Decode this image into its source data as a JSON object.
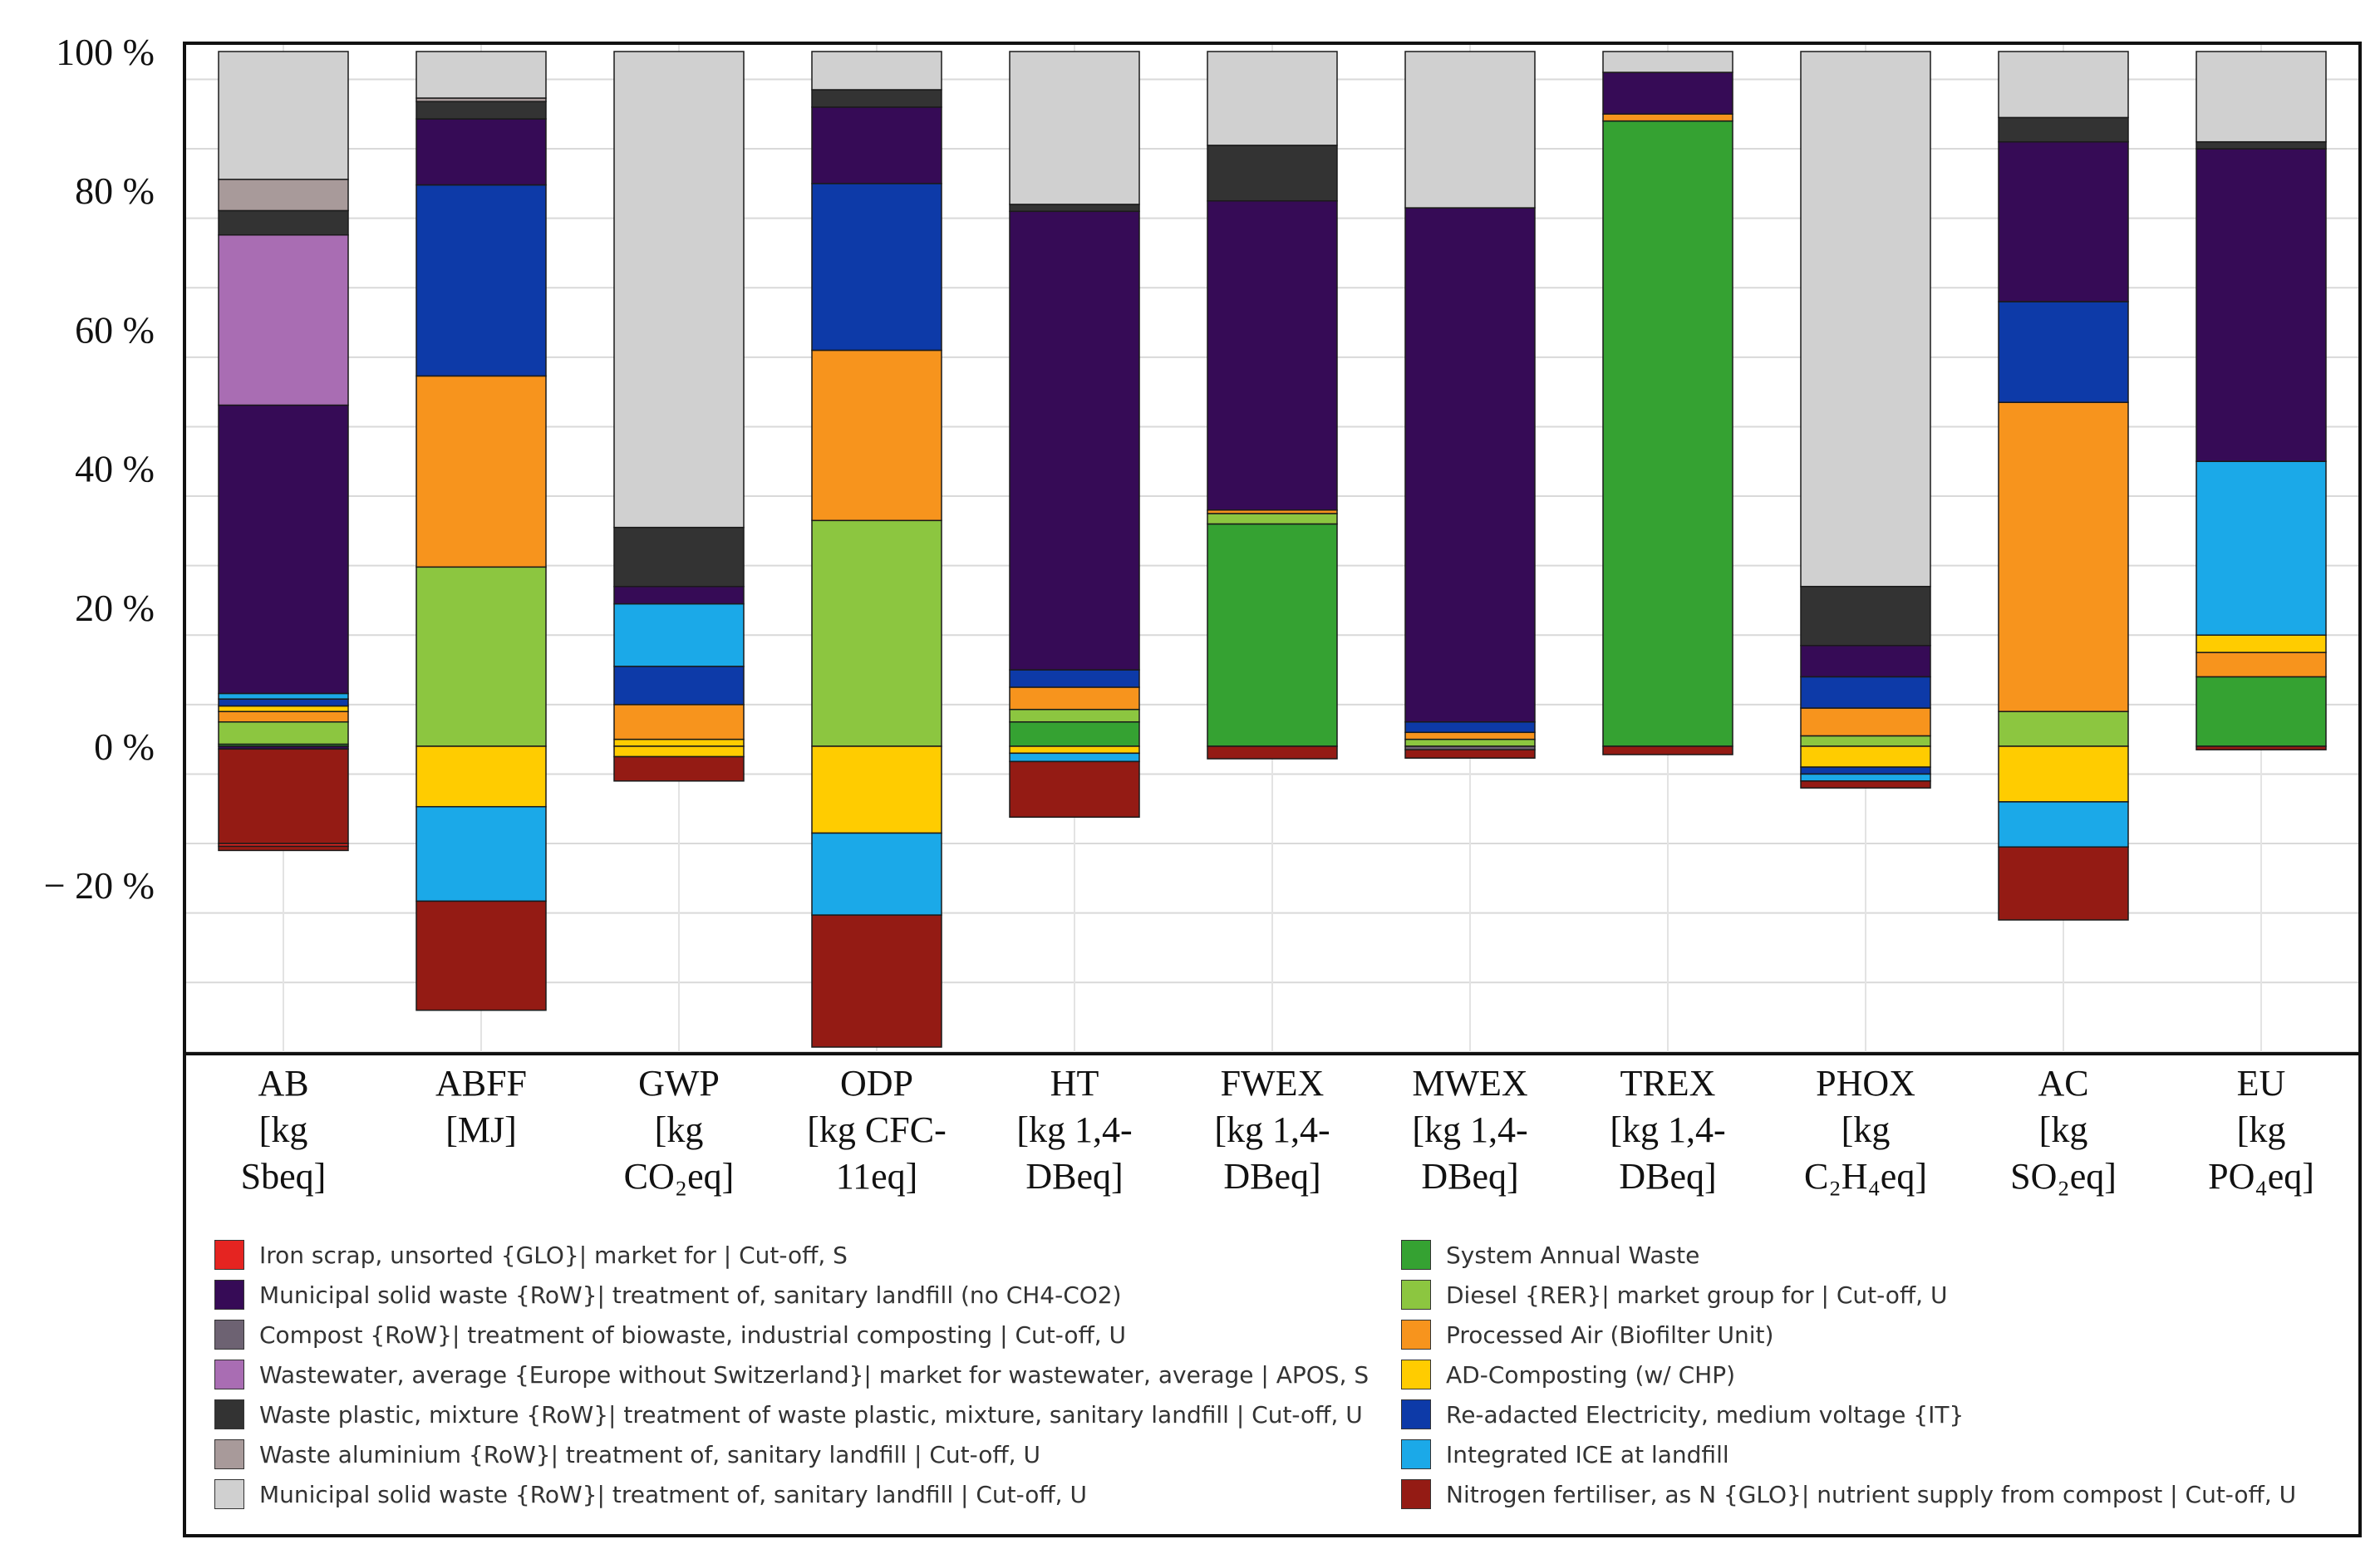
{
  "chart_data": {
    "type": "bar",
    "stacked": true,
    "y_tick_labels": [
      "100 %",
      "80 %",
      "60 %",
      "40 %",
      "20 %",
      "0 %",
      "− 20 %"
    ],
    "ylim": [
      -44,
      100
    ],
    "categories": [
      {
        "lines": [
          "AB",
          "[kg",
          "Sbeq]"
        ]
      },
      {
        "lines": [
          "ABFF",
          "[MJ]"
        ]
      },
      {
        "lines": [
          "GWP",
          "[kg",
          "CO₂eq]"
        ]
      },
      {
        "lines": [
          "ODP",
          "[kg CFC-",
          "11eq]"
        ]
      },
      {
        "lines": [
          "HT",
          "[kg 1,4-",
          "DBeq]"
        ]
      },
      {
        "lines": [
          "FWEX",
          "[kg 1,4-",
          "DBeq]"
        ]
      },
      {
        "lines": [
          "MWEX",
          "[kg 1,4-",
          "DBeq]"
        ]
      },
      {
        "lines": [
          "TREX",
          "[kg 1,4-",
          "DBeq]"
        ]
      },
      {
        "lines": [
          "PHOX",
          "[kg",
          "C₂H₄eq]"
        ]
      },
      {
        "lines": [
          "AC",
          "[kg",
          "SO₂eq]"
        ]
      },
      {
        "lines": [
          "EU",
          "[kg",
          "PO₄eq]"
        ]
      }
    ],
    "legend": [
      {
        "key": "iron",
        "label": "Iron scrap, unsorted {GLO}| market for | Cut-off, S",
        "color": "#e52421"
      },
      {
        "key": "msw_noch4",
        "label": "Municipal solid waste {RoW}| treatment of, sanitary landfill (no CH4-CO2)",
        "color": "#360b56"
      },
      {
        "key": "compost",
        "label": "Compost {RoW}| treatment of biowaste, industrial composting | Cut-off, U",
        "color": "#6d6272"
      },
      {
        "key": "wastewater",
        "label": "Wastewater, average {Europe without Switzerland}| market for wastewater, average | APOS, S",
        "color": "#a96db3"
      },
      {
        "key": "plastic",
        "label": "Waste plastic, mixture {RoW}| treatment of waste plastic, mixture, sanitary landfill | Cut-off, U",
        "color": "#333333"
      },
      {
        "key": "aluminium",
        "label": "Waste aluminium {RoW}| treatment of, sanitary landfill | Cut-off, U",
        "color": "#a89a9a"
      },
      {
        "key": "msw",
        "label": "Municipal solid waste {RoW}| treatment of, sanitary landfill | Cut-off, U",
        "color": "#d0d0d0"
      },
      {
        "key": "system",
        "label": "System Annual Waste",
        "color": "#35a232"
      },
      {
        "key": "diesel",
        "label": "Diesel {RER}| market group for | Cut-off, U",
        "color": "#8cc640"
      },
      {
        "key": "air",
        "label": "Processed Air (Biofilter Unit)",
        "color": "#f7941d"
      },
      {
        "key": "adcomp",
        "label": "AD-Composting (w/ CHP)",
        "color": "#ffcc00"
      },
      {
        "key": "elec",
        "label": "Re-adacted Electricity, medium voltage {IT}",
        "color": "#0d3aa8"
      },
      {
        "key": "ice",
        "label": "Integrated ICE at landfill",
        "color": "#1ba9e8"
      },
      {
        "key": "nfert",
        "label": "Nitrogen fertiliser, as N {GLO}| nutrient supply from compost | Cut-off, U",
        "color": "#941b14"
      }
    ],
    "series": [
      {
        "category": "AB",
        "positive": [
          [
            "system",
            0.3
          ],
          [
            "diesel",
            3.2
          ],
          [
            "air",
            1.5
          ],
          [
            "adcomp",
            0.8
          ],
          [
            "elec",
            1
          ],
          [
            "ice",
            0.8
          ],
          [
            "msw_noch4",
            41.5
          ],
          [
            "wastewater",
            24.5
          ],
          [
            "plastic",
            3.5
          ],
          [
            "aluminium",
            4.5
          ],
          [
            "msw",
            18.4
          ]
        ],
        "negative": [
          [
            "msw_noch4",
            0.4
          ],
          [
            "nfert",
            13.6
          ],
          [
            "iron",
            0.4
          ],
          [
            "nfert",
            0.6
          ]
        ]
      },
      {
        "category": "ABFF",
        "positive": [
          [
            "diesel",
            25.8
          ],
          [
            "air",
            27.5
          ],
          [
            "elec",
            27.5
          ],
          [
            "msw_noch4",
            9.5
          ],
          [
            "plastic",
            2.5
          ],
          [
            "aluminium",
            0.5
          ],
          [
            "msw",
            6.7
          ]
        ],
        "negative": [
          [
            "adcomp",
            8.7
          ],
          [
            "ice",
            13.6
          ],
          [
            "nfert",
            15.7
          ]
        ]
      },
      {
        "category": "GWP",
        "positive": [
          [
            "adcomp",
            1
          ],
          [
            "air",
            5
          ],
          [
            "elec",
            5.5
          ],
          [
            "ice",
            9
          ],
          [
            "msw_noch4",
            2.5
          ],
          [
            "plastic",
            8.5
          ],
          [
            "msw",
            68.5
          ]
        ],
        "negative": [
          [
            "adcomp",
            1.5
          ],
          [
            "nfert",
            3.5
          ]
        ]
      },
      {
        "category": "ODP",
        "positive": [
          [
            "diesel",
            32.5
          ],
          [
            "air",
            24.5
          ],
          [
            "elec",
            24
          ],
          [
            "msw_noch4",
            11
          ],
          [
            "plastic",
            2.5
          ],
          [
            "msw",
            5.5
          ]
        ],
        "negative": [
          [
            "adcomp",
            12.5
          ],
          [
            "ice",
            11.8
          ],
          [
            "nfert",
            19
          ]
        ]
      },
      {
        "category": "HT",
        "positive": [
          [
            "system",
            3.5
          ],
          [
            "diesel",
            1.8
          ],
          [
            "air",
            3.2
          ],
          [
            "elec",
            2.5
          ],
          [
            "msw_noch4",
            66
          ],
          [
            "plastic",
            1
          ],
          [
            "msw",
            22
          ]
        ],
        "negative": [
          [
            "adcomp",
            1
          ],
          [
            "ice",
            1.2
          ],
          [
            "nfert",
            8
          ]
        ]
      },
      {
        "category": "FWEX",
        "positive": [
          [
            "system",
            32
          ],
          [
            "diesel",
            1.5
          ],
          [
            "air",
            0.5
          ],
          [
            "msw_noch4",
            44.5
          ],
          [
            "plastic",
            8
          ],
          [
            "msw",
            13.5
          ]
        ],
        "negative": [
          [
            "nfert",
            1.8
          ]
        ]
      },
      {
        "category": "MWEX",
        "positive": [
          [
            "diesel",
            1
          ],
          [
            "air",
            1
          ],
          [
            "elec",
            1.5
          ],
          [
            "msw_noch4",
            74
          ],
          [
            "msw",
            22.5
          ]
        ],
        "negative": [
          [
            "compost",
            0.5
          ],
          [
            "nfert",
            1.2
          ]
        ]
      },
      {
        "category": "TREX",
        "positive": [
          [
            "system",
            90
          ],
          [
            "air",
            1
          ],
          [
            "msw_noch4",
            6
          ],
          [
            "msw",
            3
          ]
        ],
        "negative": [
          [
            "nfert",
            1.2
          ]
        ]
      },
      {
        "category": "PHOX",
        "positive": [
          [
            "diesel",
            1.5
          ],
          [
            "air",
            4
          ],
          [
            "elec",
            4.5
          ],
          [
            "msw_noch4",
            4.5
          ],
          [
            "plastic",
            8.5
          ],
          [
            "msw",
            77
          ]
        ],
        "negative": [
          [
            "adcomp",
            3
          ],
          [
            "elec",
            1
          ],
          [
            "ice",
            1
          ],
          [
            "nfert",
            1
          ]
        ]
      },
      {
        "category": "AC",
        "positive": [
          [
            "diesel",
            5
          ],
          [
            "air",
            44.5
          ],
          [
            "elec",
            14.5
          ],
          [
            "msw_noch4",
            23
          ],
          [
            "plastic",
            3.5
          ],
          [
            "msw",
            9.5
          ]
        ],
        "negative": [
          [
            "adcomp",
            8
          ],
          [
            "ice",
            6.5
          ],
          [
            "nfert",
            10.5
          ]
        ]
      },
      {
        "category": "EU",
        "positive": [
          [
            "system",
            10
          ],
          [
            "air",
            3.5
          ],
          [
            "adcomp",
            2.5
          ],
          [
            "ice",
            25
          ],
          [
            "msw_noch4",
            45
          ],
          [
            "plastic",
            1
          ],
          [
            "msw",
            13
          ]
        ],
        "negative": [
          [
            "nfert",
            0.5
          ]
        ]
      }
    ]
  }
}
